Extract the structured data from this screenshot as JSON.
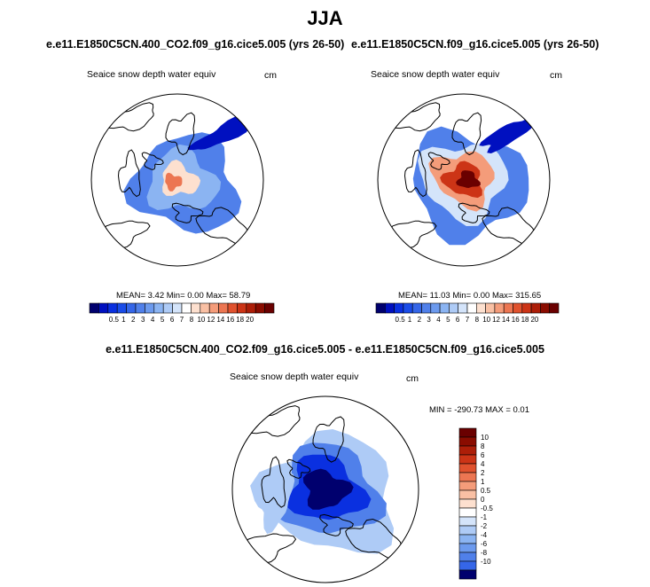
{
  "figure": {
    "title": "JJA"
  },
  "colors": {
    "ramp": [
      "#00006e",
      "#0010c0",
      "#0a30e0",
      "#1a4ce8",
      "#3566e8",
      "#5080ea",
      "#6c9aee",
      "#8bb4f2",
      "#aecbf6",
      "#d4e4fa",
      "#ffffff",
      "#fde0cf",
      "#f9c0a4",
      "#f49c7a",
      "#ec7652",
      "#e0522e",
      "#cc3416",
      "#ad1e08",
      "#8a0c00",
      "#6a0000"
    ],
    "land_outline": "#000000",
    "circle": "#000000"
  },
  "panels": [
    {
      "title": "e.e11.E1850C5CN.400_CO2.f09_g16.cice5.005 (yrs 26-50)",
      "variable": "Seaice snow depth water equiv",
      "units": "cm",
      "stats": "MEAN=   3.42  Min=   0.00  Max=  58.79"
    },
    {
      "title": "e.e11.E1850C5CN.f09_g16.cice5.005 (yrs 26-50)",
      "variable": "Seaice snow depth water equiv",
      "units": "cm",
      "stats": "MEAN=  11.03  Min=   0.00  Max= 315.65"
    },
    {
      "title": "e.e11.E1850C5CN.400_CO2.f09_g16.cice5.005 - e.e11.E1850C5CN.f09_g16.cice5.005",
      "variable": "Seaice snow depth water equiv",
      "units": "cm",
      "stats": "MIN = -290.73 MAX =   0.01"
    }
  ],
  "chart_data": [
    {
      "type": "heatmap",
      "projection": "north-polar-stereographic",
      "title": "e.e11.E1850C5CN.400_CO2.f09_g16.cice5.005 (yrs 26-50)",
      "variable": "Seaice snow depth water equiv",
      "units": "cm",
      "mean": 3.42,
      "min": 0.0,
      "max": 58.79,
      "colorbar": {
        "orientation": "horizontal",
        "levels": [
          "0.5",
          "1",
          "2",
          "3",
          "4",
          "5",
          "6",
          "7",
          "8",
          "10",
          "12",
          "14",
          "16",
          "18",
          "20"
        ]
      }
    },
    {
      "type": "heatmap",
      "projection": "north-polar-stereographic",
      "title": "e.e11.E1850C5CN.f09_g16.cice5.005 (yrs 26-50)",
      "variable": "Seaice snow depth water equiv",
      "units": "cm",
      "mean": 11.03,
      "min": 0.0,
      "max": 315.65,
      "colorbar": {
        "orientation": "horizontal",
        "levels": [
          "0.5",
          "1",
          "2",
          "3",
          "4",
          "5",
          "6",
          "7",
          "8",
          "10",
          "12",
          "14",
          "16",
          "18",
          "20"
        ]
      }
    },
    {
      "type": "heatmap",
      "projection": "north-polar-stereographic",
      "title": "e.e11.E1850C5CN.400_CO2.f09_g16.cice5.005 - e.e11.E1850C5CN.f09_g16.cice5.005",
      "variable": "Seaice snow depth water equiv",
      "units": "cm",
      "min": -290.73,
      "max": 0.01,
      "colorbar": {
        "orientation": "vertical",
        "levels": [
          "10",
          "8",
          "6",
          "4",
          "2",
          "1",
          "0.5",
          "0",
          "-0.5",
          "-1",
          "-2",
          "-4",
          "-6",
          "-8",
          "-10"
        ]
      }
    }
  ]
}
